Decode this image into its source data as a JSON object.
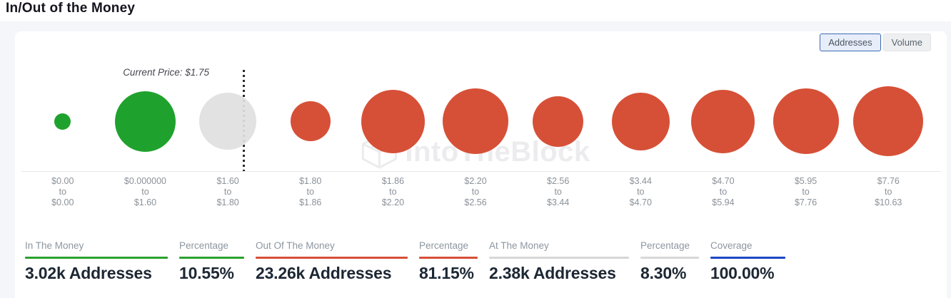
{
  "page_title": "In/Out of the Money",
  "toolbar": {
    "addresses_label": "Addresses",
    "volume_label": "Volume",
    "active": "Addresses"
  },
  "chart": {
    "current_price_label": "Current Price: $1.75",
    "watermark_text": "IntoTheBlock",
    "axis_separator": "to"
  },
  "chart_data": {
    "type": "bubble",
    "title": "In/Out of the Money",
    "x_unit": "price range (USD)",
    "size_unit": "relative number of addresses (bubble diameter px)",
    "current_price": "$1.75",
    "price_line_slot_position": 2.68,
    "colors": {
      "in": "#1fa22d",
      "out": "#d65037",
      "at": "rgba(223,223,223,0.92)"
    },
    "buckets": [
      {
        "from": "$0.00",
        "to": "$0.00",
        "status": "in",
        "size": 23
      },
      {
        "from": "$0.000000",
        "to": "$1.60",
        "status": "in",
        "size": 85
      },
      {
        "from": "$1.60",
        "to": "$1.80",
        "status": "at",
        "size": 80
      },
      {
        "from": "$1.80",
        "to": "$1.86",
        "status": "out",
        "size": 56
      },
      {
        "from": "$1.86",
        "to": "$2.20",
        "status": "out",
        "size": 89
      },
      {
        "from": "$2.20",
        "to": "$2.56",
        "status": "out",
        "size": 92
      },
      {
        "from": "$2.56",
        "to": "$3.44",
        "status": "out",
        "size": 71
      },
      {
        "from": "$3.44",
        "to": "$4.70",
        "status": "out",
        "size": 81
      },
      {
        "from": "$4.70",
        "to": "$5.94",
        "status": "out",
        "size": 89
      },
      {
        "from": "$5.95",
        "to": "$7.76",
        "status": "out",
        "size": 92
      },
      {
        "from": "$7.76",
        "to": "$10.63",
        "status": "out",
        "size": 98
      }
    ]
  },
  "stats": [
    {
      "label": "In The Money",
      "value": "3.02k Addresses",
      "accent": "#2aa12e"
    },
    {
      "label": "Percentage",
      "value": "10.55%",
      "accent": "#2aa12e"
    },
    {
      "label": "Out Of The Money",
      "value": "23.26k Addresses",
      "accent": "#d65037"
    },
    {
      "label": "Percentage",
      "value": "81.15%",
      "accent": "#d65037"
    },
    {
      "label": "At The Money",
      "value": "2.38k Addresses",
      "accent": "#d7d7d7"
    },
    {
      "label": "Percentage",
      "value": "8.30%",
      "accent": "#d7d7d7"
    },
    {
      "label": "Coverage",
      "value": "100.00%",
      "accent": "#1d46c4"
    }
  ]
}
